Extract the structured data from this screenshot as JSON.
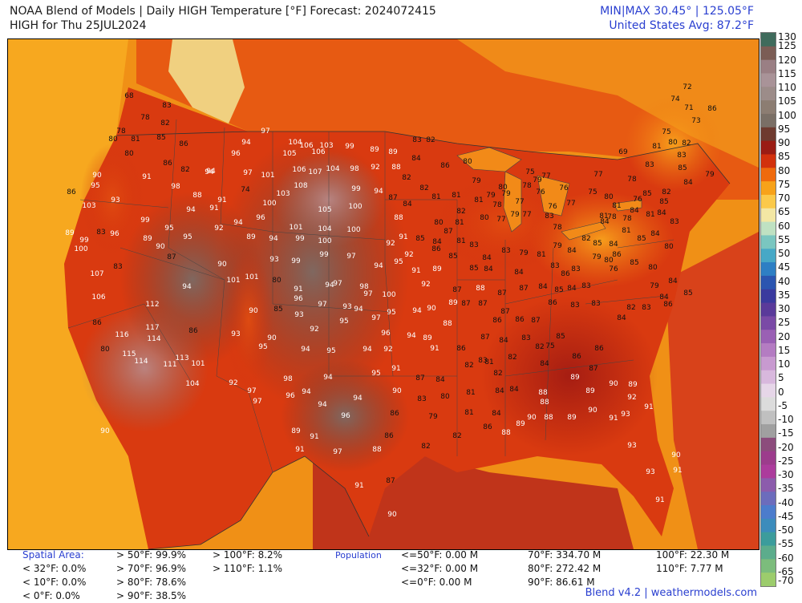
{
  "header": {
    "title_line1": "NOAA Blend of Models | Daily HIGH Temperature [°F] Forecast: 2024072415",
    "title_line2": "HIGH for Thu 25JUL2024",
    "minmax": "MIN|MAX 30.45°  |  125.05°F",
    "avg": "United States Avg: 87.2°F"
  },
  "colorbar": {
    "ticks": [
      "130",
      "125",
      "120",
      "115",
      "110",
      "105",
      "100",
      "95",
      "90",
      "85",
      "80",
      "75",
      "70",
      "65",
      "60",
      "55",
      "50",
      "45",
      "40",
      "35",
      "30",
      "25",
      "20",
      "15",
      "10",
      "5",
      "0",
      "-5",
      "-10",
      "-15",
      "-20",
      "-25",
      "-30",
      "-35",
      "-40",
      "-45",
      "-50",
      "-55",
      "-60",
      "-65",
      "-70"
    ],
    "colors": [
      "#3f6b5c",
      "#7b5d55",
      "#9a7f84",
      "#a99398",
      "#9c8c89",
      "#8c7d72",
      "#7a6f66",
      "#6e3a2f",
      "#9a1c14",
      "#d2310d",
      "#ef6a0d",
      "#f7a21a",
      "#fbc94a",
      "#f3e7a4",
      "#bfe1c2",
      "#7ac6c0",
      "#47a8c6",
      "#2e7fc4",
      "#2b55b0",
      "#3a3a9e",
      "#5a3a9a",
      "#7a4aa6",
      "#9a60b4",
      "#b47cc2",
      "#c89ad0",
      "#d8b8dd",
      "#e6d6e8",
      "#dcdcdc",
      "#c0c0c0",
      "#a0a0a0",
      "#8c4c7c",
      "#9c3c8c",
      "#ac3c9c",
      "#8c5cac",
      "#6c6cbc",
      "#4c7ccc",
      "#3c8cbc",
      "#3c9c9c",
      "#5cac8c",
      "#7cbc7c",
      "#9ccc6c"
    ]
  },
  "stats": {
    "spatial_label": "Spatial Area:",
    "spatial_col1": [
      "< 32°F: 0.0%",
      "< 10°F: 0.0%",
      "< 0°F: 0.0%"
    ],
    "spatial_col2": [
      "> 50°F: 99.9%",
      "> 70°F: 96.9%",
      "> 80°F: 78.6%",
      "> 90°F: 38.5%"
    ],
    "spatial_col3": [
      "> 100°F: 8.2%",
      "> 110°F: 1.1%"
    ],
    "population_label": "Population",
    "pop_col1": [
      "<=50°F: 0.00 M",
      "<=32°F: 0.00 M",
      "<=0°F: 0.00 M"
    ],
    "pop_col2": [
      "70°F: 334.70 M",
      "80°F: 272.42 M",
      "90°F: 86.61 M"
    ],
    "pop_col3": [
      "100°F: 22.30 M",
      "110°F: 7.77 M"
    ]
  },
  "credit": "Blend v4.2 | weathermodels.com",
  "cities": [
    [
      "68",
      160,
      118
    ],
    [
      "83",
      207,
      130
    ],
    [
      "78",
      180,
      145
    ],
    [
      "82",
      205,
      152
    ],
    [
      "78",
      150,
      162
    ],
    [
      "80",
      140,
      172
    ],
    [
      "81",
      168,
      172
    ],
    [
      "85",
      200,
      170
    ],
    [
      "86",
      228,
      178
    ],
    [
      "80",
      160,
      190
    ],
    [
      "86",
      208,
      202
    ],
    [
      "82",
      230,
      210
    ],
    [
      "94",
      262,
      212
    ],
    [
      "96",
      293,
      190
    ],
    [
      "94",
      306,
      176
    ],
    [
      "97",
      330,
      162
    ],
    [
      "104",
      367,
      176
    ],
    [
      "106",
      381,
      180
    ],
    [
      "105",
      360,
      190
    ],
    [
      "106",
      396,
      188
    ],
    [
      "103",
      406,
      180
    ],
    [
      "99",
      435,
      181
    ],
    [
      "89",
      466,
      185
    ],
    [
      "89",
      489,
      188
    ],
    [
      "83",
      519,
      173
    ],
    [
      "82",
      536,
      173
    ],
    [
      "90",
      120,
      217
    ],
    [
      "95",
      118,
      230
    ],
    [
      "91",
      182,
      219
    ],
    [
      "94",
      260,
      213
    ],
    [
      "97",
      308,
      214
    ],
    [
      "101",
      333,
      217
    ],
    [
      "106",
      372,
      210
    ],
    [
      "107",
      392,
      213
    ],
    [
      "104",
      414,
      209
    ],
    [
      "98",
      441,
      209
    ],
    [
      "92",
      467,
      207
    ],
    [
      "88",
      493,
      207
    ],
    [
      "82",
      506,
      220
    ],
    [
      "84",
      518,
      196
    ],
    [
      "86",
      554,
      205
    ],
    [
      "80",
      582,
      200
    ],
    [
      "86",
      88,
      238
    ],
    [
      "103",
      110,
      255
    ],
    [
      "93",
      143,
      248
    ],
    [
      "98",
      218,
      231
    ],
    [
      "88",
      245,
      242
    ],
    [
      "91",
      276,
      248
    ],
    [
      "94",
      237,
      260
    ],
    [
      "91",
      266,
      258
    ],
    [
      "74",
      305,
      235
    ],
    [
      "100",
      335,
      252
    ],
    [
      "103",
      352,
      240
    ],
    [
      "108",
      374,
      230
    ],
    [
      "99",
      443,
      234
    ],
    [
      "94",
      471,
      237
    ],
    [
      "87",
      489,
      245
    ],
    [
      "84",
      507,
      253
    ],
    [
      "82",
      528,
      233
    ],
    [
      "81",
      543,
      244
    ],
    [
      "81",
      568,
      242
    ],
    [
      "79",
      593,
      224
    ],
    [
      "81",
      596,
      248
    ],
    [
      "82",
      574,
      262
    ],
    [
      "79",
      611,
      242
    ],
    [
      "80",
      626,
      232
    ],
    [
      "96",
      324,
      270
    ],
    [
      "101",
      368,
      282
    ],
    [
      "105",
      404,
      260
    ],
    [
      "100",
      442,
      256
    ],
    [
      "88",
      496,
      270
    ],
    [
      "80",
      546,
      276
    ],
    [
      "81",
      572,
      276
    ],
    [
      "80",
      603,
      270
    ],
    [
      "77",
      624,
      272
    ],
    [
      "79",
      641,
      266
    ],
    [
      "77",
      656,
      266
    ],
    [
      "99",
      180,
      273
    ],
    [
      "95",
      210,
      283
    ],
    [
      "89",
      86,
      289
    ],
    [
      "83",
      125,
      288
    ],
    [
      "96",
      142,
      290
    ],
    [
      "99",
      104,
      298
    ],
    [
      "100",
      100,
      309
    ],
    [
      "89",
      183,
      296
    ],
    [
      "95",
      233,
      294
    ],
    [
      "92",
      272,
      283
    ],
    [
      "94",
      296,
      276
    ],
    [
      "89",
      312,
      294
    ],
    [
      "94",
      340,
      296
    ],
    [
      "99",
      373,
      296
    ],
    [
      "104",
      404,
      284
    ],
    [
      "100",
      440,
      285
    ],
    [
      "92",
      486,
      302
    ],
    [
      "91",
      502,
      294
    ],
    [
      "85",
      523,
      296
    ],
    [
      "87",
      558,
      287
    ],
    [
      "84",
      544,
      300
    ],
    [
      "81",
      574,
      299
    ],
    [
      "83",
      590,
      304
    ],
    [
      "90",
      199,
      306
    ],
    [
      "87",
      213,
      319
    ],
    [
      "90",
      276,
      328
    ],
    [
      "99",
      368,
      324
    ],
    [
      "100",
      404,
      299
    ],
    [
      "99",
      403,
      316
    ],
    [
      "97",
      437,
      318
    ],
    [
      "94",
      471,
      330
    ],
    [
      "95",
      496,
      325
    ],
    [
      "92",
      509,
      316
    ],
    [
      "86",
      543,
      309
    ],
    [
      "85",
      564,
      318
    ],
    [
      "84",
      606,
      320
    ],
    [
      "85",
      590,
      333
    ],
    [
      "84",
      608,
      334
    ],
    [
      "83",
      630,
      311
    ],
    [
      "79",
      652,
      314
    ],
    [
      "81",
      674,
      316
    ],
    [
      "83",
      691,
      330
    ],
    [
      "79",
      694,
      305
    ],
    [
      "84",
      712,
      311
    ],
    [
      "83",
      717,
      334
    ],
    [
      "107",
      120,
      340
    ],
    [
      "83",
      146,
      331
    ],
    [
      "101",
      290,
      348
    ],
    [
      "101",
      313,
      344
    ],
    [
      "93",
      341,
      322
    ],
    [
      "80",
      344,
      348
    ],
    [
      "91",
      371,
      359
    ],
    [
      "96",
      371,
      371
    ],
    [
      "97",
      401,
      378
    ],
    [
      "94",
      410,
      354
    ],
    [
      "97",
      420,
      352
    ],
    [
      "98",
      453,
      356
    ],
    [
      "97",
      458,
      365
    ],
    [
      "100",
      484,
      366
    ],
    [
      "91",
      518,
      336
    ],
    [
      "92",
      530,
      353
    ],
    [
      "89",
      544,
      334
    ],
    [
      "87",
      569,
      360
    ],
    [
      "88",
      598,
      358
    ],
    [
      "87",
      625,
      364
    ],
    [
      "87",
      652,
      358
    ],
    [
      "84",
      646,
      338
    ],
    [
      "84",
      676,
      356
    ],
    [
      "85",
      696,
      360
    ],
    [
      "84",
      712,
      358
    ],
    [
      "83",
      730,
      355
    ],
    [
      "94",
      232,
      356
    ],
    [
      "106",
      122,
      369
    ],
    [
      "112",
      189,
      378
    ],
    [
      "90",
      315,
      386
    ],
    [
      "85",
      346,
      384
    ],
    [
      "93",
      372,
      391
    ],
    [
      "93",
      432,
      381
    ],
    [
      "94",
      446,
      384
    ],
    [
      "97",
      468,
      395
    ],
    [
      "95",
      487,
      388
    ],
    [
      "94",
      519,
      386
    ],
    [
      "90",
      537,
      383
    ],
    [
      "89",
      564,
      376
    ],
    [
      "87",
      580,
      377
    ],
    [
      "87",
      601,
      377
    ],
    [
      "86",
      619,
      398
    ],
    [
      "87",
      629,
      387
    ],
    [
      "86",
      647,
      397
    ],
    [
      "87",
      667,
      398
    ],
    [
      "86",
      688,
      376
    ],
    [
      "83",
      716,
      379
    ],
    [
      "83",
      742,
      377
    ],
    [
      "86",
      120,
      401
    ],
    [
      "117",
      189,
      407
    ],
    [
      "116",
      151,
      416
    ],
    [
      "114",
      191,
      421
    ],
    [
      "86",
      240,
      411
    ],
    [
      "93",
      293,
      415
    ],
    [
      "90",
      338,
      420
    ],
    [
      "92",
      391,
      409
    ],
    [
      "95",
      428,
      399
    ],
    [
      "96",
      480,
      414
    ],
    [
      "94",
      512,
      417
    ],
    [
      "89",
      532,
      420
    ],
    [
      "88",
      557,
      402
    ],
    [
      "87",
      604,
      419
    ],
    [
      "84",
      627,
      423
    ],
    [
      "83",
      655,
      420
    ],
    [
      "82",
      672,
      431
    ],
    [
      "75",
      685,
      430
    ],
    [
      "85",
      698,
      418
    ],
    [
      "80",
      130,
      434
    ],
    [
      "115",
      160,
      440
    ],
    [
      "114",
      175,
      449
    ],
    [
      "111",
      211,
      453
    ],
    [
      "113",
      226,
      445
    ],
    [
      "101",
      246,
      452
    ],
    [
      "95",
      327,
      431
    ],
    [
      "94",
      380,
      434
    ],
    [
      "95",
      412,
      436
    ],
    [
      "94",
      457,
      434
    ],
    [
      "92",
      483,
      434
    ],
    [
      "91",
      541,
      433
    ],
    [
      "86",
      574,
      433
    ],
    [
      "83",
      601,
      448
    ],
    [
      "82",
      638,
      444
    ],
    [
      "84",
      678,
      452
    ],
    [
      "86",
      718,
      443
    ],
    [
      "104",
      239,
      477
    ],
    [
      "92",
      290,
      476
    ],
    [
      "97",
      313,
      486
    ],
    [
      "97",
      320,
      499
    ],
    [
      "98",
      358,
      471
    ],
    [
      "94",
      408,
      469
    ],
    [
      "95",
      468,
      464
    ],
    [
      "91",
      493,
      458
    ],
    [
      "87",
      523,
      470
    ],
    [
      "84",
      548,
      472
    ],
    [
      "82",
      584,
      454
    ],
    [
      "81",
      609,
      450
    ],
    [
      "82",
      620,
      464
    ],
    [
      "84",
      640,
      484
    ],
    [
      "88",
      676,
      488
    ],
    [
      "89",
      716,
      469
    ],
    [
      "87",
      739,
      458
    ],
    [
      "86",
      746,
      433
    ],
    [
      "84",
      774,
      395
    ],
    [
      "96",
      361,
      492
    ],
    [
      "94",
      381,
      487
    ],
    [
      "94",
      401,
      503
    ],
    [
      "94",
      445,
      495
    ],
    [
      "90",
      494,
      486
    ],
    [
      "83",
      525,
      496
    ],
    [
      "80",
      554,
      493
    ],
    [
      "81",
      586,
      488
    ],
    [
      "84",
      622,
      486
    ],
    [
      "88",
      678,
      500
    ],
    [
      "89",
      735,
      486
    ],
    [
      "90",
      764,
      477
    ],
    [
      "89",
      788,
      478
    ],
    [
      "90",
      130,
      536
    ],
    [
      "96",
      430,
      517
    ],
    [
      "86",
      491,
      514
    ],
    [
      "79",
      539,
      518
    ],
    [
      "81",
      584,
      513
    ],
    [
      "84",
      618,
      514
    ],
    [
      "86",
      607,
      531
    ],
    [
      "88",
      630,
      538
    ],
    [
      "89",
      648,
      527
    ],
    [
      "90",
      662,
      519
    ],
    [
      "88",
      683,
      519
    ],
    [
      "89",
      712,
      519
    ],
    [
      "90",
      738,
      510
    ],
    [
      "92",
      787,
      494
    ],
    [
      "91",
      764,
      520
    ],
    [
      "93",
      779,
      515
    ],
    [
      "91",
      808,
      506
    ],
    [
      "89",
      368,
      536
    ],
    [
      "91",
      391,
      543
    ],
    [
      "86",
      484,
      542
    ],
    [
      "82",
      530,
      555
    ],
    [
      "82",
      569,
      542
    ],
    [
      "91",
      373,
      559
    ],
    [
      "97",
      420,
      562
    ],
    [
      "88",
      469,
      559
    ],
    [
      "93",
      787,
      554
    ],
    [
      "93",
      810,
      587
    ],
    [
      "91",
      844,
      585
    ],
    [
      "90",
      842,
      566
    ],
    [
      "86",
      832,
      378
    ],
    [
      "85",
      857,
      364
    ],
    [
      "84",
      827,
      369
    ],
    [
      "83",
      805,
      382
    ],
    [
      "82",
      786,
      382
    ],
    [
      "79",
      815,
      355
    ],
    [
      "84",
      838,
      349
    ],
    [
      "80",
      813,
      332
    ],
    [
      "85",
      790,
      326
    ],
    [
      "76",
      764,
      334
    ],
    [
      "84",
      764,
      303
    ],
    [
      "81",
      780,
      286
    ],
    [
      "85",
      799,
      296
    ],
    [
      "84",
      816,
      290
    ],
    [
      "80",
      833,
      306
    ],
    [
      "84",
      824,
      264
    ],
    [
      "78",
      762,
      269
    ],
    [
      "78",
      781,
      271
    ],
    [
      "76",
      794,
      247
    ],
    [
      "84",
      790,
      261
    ],
    [
      "85",
      827,
      250
    ],
    [
      "82",
      830,
      238
    ],
    [
      "78",
      787,
      222
    ],
    [
      "83",
      809,
      204
    ],
    [
      "81",
      818,
      181
    ],
    [
      "75",
      830,
      163
    ],
    [
      "80",
      838,
      176
    ],
    [
      "82",
      855,
      177
    ],
    [
      "85",
      850,
      208
    ],
    [
      "84",
      857,
      226
    ],
    [
      "83",
      849,
      192
    ],
    [
      "79",
      884,
      216
    ],
    [
      "74",
      841,
      122
    ],
    [
      "72",
      856,
      107
    ],
    [
      "71",
      858,
      133
    ],
    [
      "73",
      867,
      149
    ],
    [
      "86",
      887,
      134
    ],
    [
      "69",
      776,
      188
    ],
    [
      "91",
      447,
      604
    ],
    [
      "87",
      486,
      598
    ],
    [
      "90",
      488,
      640
    ],
    [
      "91",
      822,
      622
    ],
    [
      "79",
      669,
      223
    ],
    [
      "75",
      660,
      213
    ],
    [
      "77",
      680,
      218
    ],
    [
      "79",
      630,
      240
    ],
    [
      "77",
      647,
      250
    ],
    [
      "76",
      673,
      238
    ],
    [
      "78",
      656,
      230
    ],
    [
      "78",
      619,
      254
    ],
    [
      "76",
      688,
      256
    ],
    [
      "77",
      711,
      252
    ],
    [
      "80",
      758,
      244
    ],
    [
      "81",
      768,
      255
    ],
    [
      "81",
      752,
      268
    ],
    [
      "75",
      738,
      238
    ],
    [
      "77",
      745,
      216
    ],
    [
      "76",
      702,
      233
    ],
    [
      "78",
      694,
      282
    ],
    [
      "83",
      684,
      268
    ],
    [
      "82",
      730,
      296
    ],
    [
      "79",
      743,
      319
    ],
    [
      "80",
      758,
      323
    ],
    [
      "84",
      753,
      275
    ],
    [
      "86",
      768,
      316
    ],
    [
      "85",
      744,
      302
    ],
    [
      "86",
      704,
      340
    ],
    [
      "85",
      806,
      240
    ],
    [
      "83",
      840,
      275
    ],
    [
      "81",
      810,
      266
    ]
  ]
}
